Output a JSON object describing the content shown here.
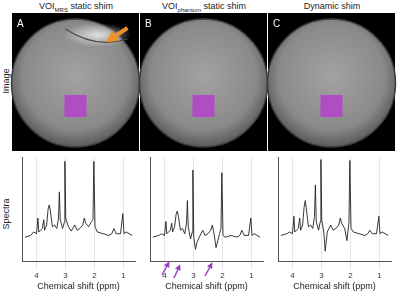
{
  "row_labels": [
    "Image",
    "Spectra"
  ],
  "panels": [
    {
      "label": "A",
      "title": "VOI",
      "title_subscript": "MRS",
      "title_after": "static shim"
    },
    {
      "label": "B",
      "title": "VOI",
      "title_subscript": "phantom",
      "title_after": "static shim"
    },
    {
      "label": "C",
      "title": "Dynamic shim"
    }
  ],
  "chart_data": [
    {
      "type": "line",
      "x_label": "Chemical shift (ppm)",
      "color": "#222222",
      "grid": true,
      "tick_labels": "x",
      "xlim": [
        4.5,
        0.6
      ],
      "xticks": [
        4,
        3,
        2,
        1
      ],
      "ylim": [
        -20,
        100
      ],
      "x": [
        4.4,
        4.2,
        4.1,
        4.0,
        3.95,
        3.92,
        3.8,
        3.75,
        3.72,
        3.65,
        3.6,
        3.56,
        3.52,
        3.45,
        3.38,
        3.3,
        3.24,
        3.21,
        3.18,
        3.1,
        3.04,
        3.02,
        2.99,
        2.9,
        2.8,
        2.68,
        2.6,
        2.5,
        2.4,
        2.35,
        2.3,
        2.2,
        2.1,
        2.05,
        2.02,
        1.98,
        1.9,
        1.7,
        1.5,
        1.4,
        1.33,
        1.25,
        1.1,
        1.02,
        0.98,
        0.9,
        0.7
      ],
      "values": [
        8,
        10,
        14,
        12,
        30,
        14,
        18,
        28,
        16,
        22,
        40,
        45,
        38,
        20,
        22,
        18,
        30,
        60,
        28,
        18,
        25,
        95,
        30,
        20,
        15,
        22,
        16,
        18,
        22,
        30,
        24,
        20,
        26,
        28,
        95,
        20,
        14,
        12,
        10,
        12,
        18,
        12,
        12,
        35,
        12,
        14,
        10
      ]
    },
    {
      "type": "line",
      "x_label": "Chemical shift (ppm)",
      "color": "#222222",
      "grid": true,
      "tick_labels": "x",
      "xlim": [
        4.5,
        0.6
      ],
      "xticks": [
        4,
        3,
        2,
        1
      ],
      "ylim": [
        -20,
        100
      ],
      "x": [
        4.4,
        4.2,
        4.1,
        4.0,
        3.95,
        3.92,
        3.8,
        3.75,
        3.72,
        3.65,
        3.6,
        3.56,
        3.52,
        3.45,
        3.38,
        3.3,
        3.24,
        3.21,
        3.18,
        3.1,
        3.04,
        3.02,
        2.99,
        2.93,
        2.88,
        2.8,
        2.68,
        2.6,
        2.5,
        2.4,
        2.35,
        2.3,
        2.22,
        2.16,
        2.1,
        2.05,
        2.02,
        1.98,
        1.9,
        1.7,
        1.5,
        1.4,
        1.33,
        1.25,
        1.1,
        1.02,
        0.98,
        0.9,
        0.7
      ],
      "values": [
        8,
        10,
        12,
        10,
        26,
        12,
        16,
        24,
        14,
        20,
        34,
        38,
        32,
        16,
        18,
        12,
        24,
        50,
        20,
        6,
        14,
        85,
        8,
        -6,
        2,
        8,
        16,
        10,
        12,
        16,
        22,
        14,
        -4,
        4,
        12,
        18,
        82,
        10,
        8,
        10,
        8,
        10,
        16,
        10,
        10,
        30,
        10,
        12,
        8
      ]
    },
    {
      "type": "line",
      "x_label": "Chemical shift (ppm)",
      "color": "#222222",
      "grid": true,
      "tick_labels": "x",
      "xlim": [
        4.5,
        0.6
      ],
      "xticks": [
        4,
        3,
        2,
        1
      ],
      "ylim": [
        -20,
        100
      ],
      "x": [
        4.4,
        4.2,
        4.1,
        4.0,
        3.95,
        3.92,
        3.8,
        3.75,
        3.72,
        3.65,
        3.6,
        3.56,
        3.52,
        3.45,
        3.38,
        3.3,
        3.24,
        3.21,
        3.18,
        3.1,
        3.04,
        3.02,
        2.99,
        2.92,
        2.87,
        2.8,
        2.68,
        2.6,
        2.5,
        2.4,
        2.35,
        2.3,
        2.2,
        2.12,
        2.05,
        2.02,
        1.98,
        1.9,
        1.7,
        1.5,
        1.4,
        1.33,
        1.25,
        1.1,
        1.02,
        0.98,
        0.9,
        0.7
      ],
      "values": [
        10,
        12,
        14,
        12,
        32,
        14,
        18,
        30,
        16,
        22,
        42,
        50,
        40,
        20,
        22,
        18,
        32,
        68,
        26,
        16,
        26,
        97,
        28,
        14,
        -8,
        14,
        22,
        16,
        18,
        22,
        30,
        24,
        18,
        4,
        26,
        96,
        18,
        14,
        12,
        10,
        12,
        16,
        12,
        12,
        32,
        12,
        14,
        10
      ]
    }
  ]
}
